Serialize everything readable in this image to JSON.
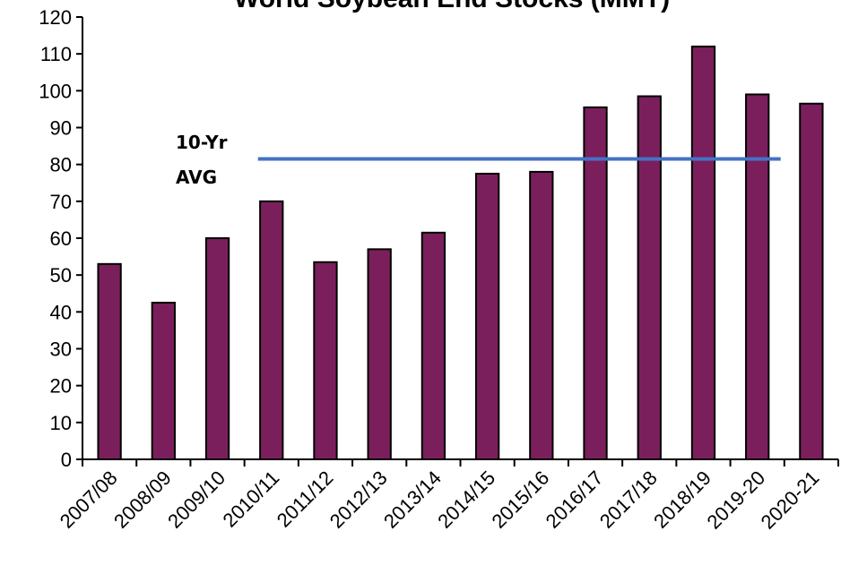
{
  "chart_data": {
    "type": "bar",
    "title": "World Soybean End Stocks (MMT)",
    "xlabel": "",
    "ylabel": "",
    "ylim": [
      0,
      120
    ],
    "ytick_step": 10,
    "categories": [
      "2007/08",
      "2008/09",
      "2009/10",
      "2010/11",
      "2011/12",
      "2012/13",
      "2013/14",
      "2014/15",
      "2015/16",
      "2016/17",
      "2017/18",
      "2018/19",
      "2019-20",
      "2020-21"
    ],
    "values": [
      53,
      42.5,
      60,
      70,
      53.5,
      57,
      61.5,
      77.5,
      78,
      95.5,
      98.5,
      112,
      99,
      96.5
    ],
    "bar_color": "#7b1f5c",
    "grid": false,
    "legend": "none",
    "reference_line": {
      "label_line1": "10-Yr",
      "label_line2": "AVG",
      "value": 81.5,
      "color": "#4472c4",
      "start_category": "2010/11",
      "end_category": "2019-20"
    }
  }
}
